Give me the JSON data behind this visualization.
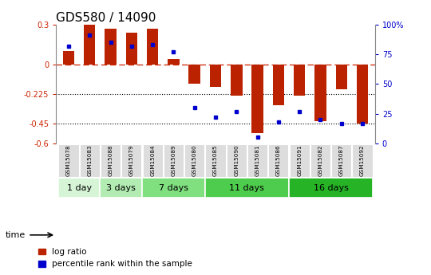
{
  "title": "GDS580 / 14090",
  "samples": [
    "GSM15078",
    "GSM15083",
    "GSM15088",
    "GSM15079",
    "GSM15084",
    "GSM15089",
    "GSM15080",
    "GSM15085",
    "GSM15090",
    "GSM15081",
    "GSM15086",
    "GSM15091",
    "GSM15082",
    "GSM15087",
    "GSM15092"
  ],
  "log_ratio": [
    0.1,
    0.3,
    0.27,
    0.24,
    0.27,
    0.04,
    -0.15,
    -0.17,
    -0.24,
    -0.52,
    -0.31,
    -0.24,
    -0.43,
    -0.19,
    -0.45
  ],
  "percentile": [
    82,
    91,
    85,
    82,
    83,
    77,
    30,
    22,
    27,
    5,
    18,
    27,
    20,
    17,
    17
  ],
  "groups": [
    {
      "label": "1 day",
      "count": 2,
      "color": "#d6f5d6"
    },
    {
      "label": "3 days",
      "count": 2,
      "color": "#b3ecb3"
    },
    {
      "label": "7 days",
      "count": 3,
      "color": "#80e080"
    },
    {
      "label": "11 days",
      "count": 4,
      "color": "#4dcc4d"
    },
    {
      "label": "16 days",
      "count": 4,
      "color": "#26b326"
    }
  ],
  "ylim": [
    -0.6,
    0.3
  ],
  "yticks": [
    0.3,
    0.0,
    -0.225,
    -0.45,
    -0.6
  ],
  "ytick_labels": [
    "0.3",
    "0",
    "-0.225",
    "-0.45",
    "-0.6"
  ],
  "right_yticks_pct": [
    100,
    75,
    50,
    25,
    0
  ],
  "right_ytick_labels": [
    "100%",
    "75",
    "50",
    "25",
    "0"
  ],
  "bar_color": "#bb2200",
  "dot_color": "#0000cc",
  "hline_color": "#cc2200",
  "title_fontsize": 11,
  "tick_fontsize": 7,
  "label_fontsize": 8,
  "legend_fontsize": 7.5
}
